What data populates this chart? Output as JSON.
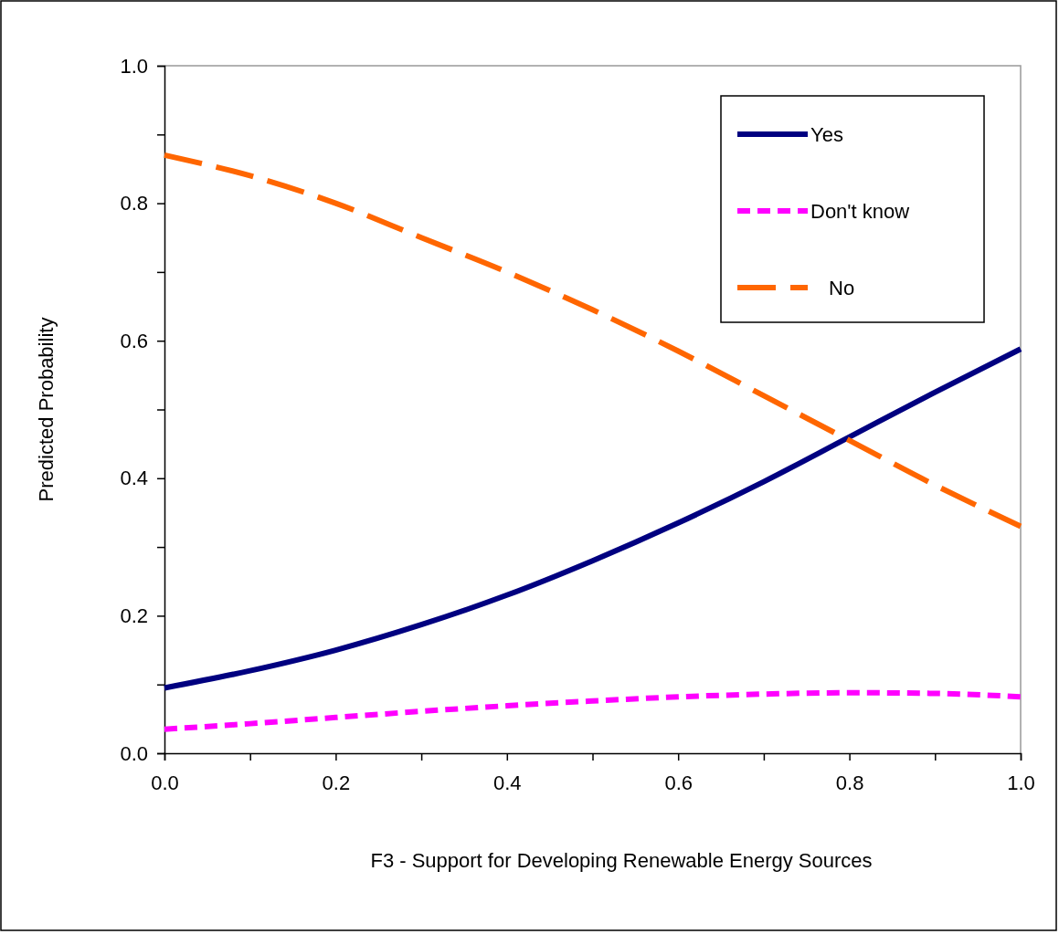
{
  "chart_data": {
    "type": "line",
    "xlabel": "F3 - Support for Developing Renewable Energy Sources",
    "ylabel": "Predicted Probability",
    "x": [
      0,
      0.1,
      0.2,
      0.3,
      0.4,
      0.5,
      0.6,
      0.7,
      0.8,
      0.9,
      1.0
    ],
    "series": [
      {
        "name": "Yes",
        "color": "#000080",
        "line_style": "solid",
        "values": [
          0.095,
          0.12,
          0.15,
          0.187,
          0.23,
          0.28,
          0.335,
          0.395,
          0.46,
          0.525,
          0.588
        ]
      },
      {
        "name": "Don't know",
        "color": "#ff00ff",
        "line_style": "dashed",
        "values": [
          0.035,
          0.043,
          0.052,
          0.061,
          0.069,
          0.076,
          0.082,
          0.086,
          0.088,
          0.087,
          0.082
        ]
      },
      {
        "name": "No",
        "color": "#ff6600",
        "line_style": "dashed",
        "values": [
          0.87,
          0.84,
          0.8,
          0.75,
          0.7,
          0.645,
          0.585,
          0.52,
          0.455,
          0.39,
          0.33
        ]
      }
    ],
    "xlim": [
      0,
      1
    ],
    "ylim": [
      0,
      1
    ],
    "xticks": [
      {
        "value": 0,
        "label": "0.0"
      },
      {
        "value": 0.1,
        "label": null
      },
      {
        "value": 0.2,
        "label": "0.2"
      },
      {
        "value": 0.3,
        "label": null
      },
      {
        "value": 0.4,
        "label": "0.4"
      },
      {
        "value": 0.5,
        "label": null
      },
      {
        "value": 0.6,
        "label": "0.6"
      },
      {
        "value": 0.7,
        "label": null
      },
      {
        "value": 0.8,
        "label": "0.8"
      },
      {
        "value": 0.9,
        "label": null
      },
      {
        "value": 1,
        "label": "1.0"
      }
    ],
    "yticks": [
      {
        "value": 0,
        "label": "0.0"
      },
      {
        "value": 0.1,
        "label": null
      },
      {
        "value": 0.2,
        "label": "0.2"
      },
      {
        "value": 0.3,
        "label": null
      },
      {
        "value": 0.4,
        "label": "0.4"
      },
      {
        "value": 0.5,
        "label": null
      },
      {
        "value": 0.6,
        "label": "0.6"
      },
      {
        "value": 0.7,
        "label": null
      },
      {
        "value": 0.8,
        "label": "0.8"
      },
      {
        "value": 0.9,
        "label": null
      },
      {
        "value": 1,
        "label": "1.0"
      }
    ],
    "grid": false,
    "legend": "top right",
    "marker": "none"
  }
}
